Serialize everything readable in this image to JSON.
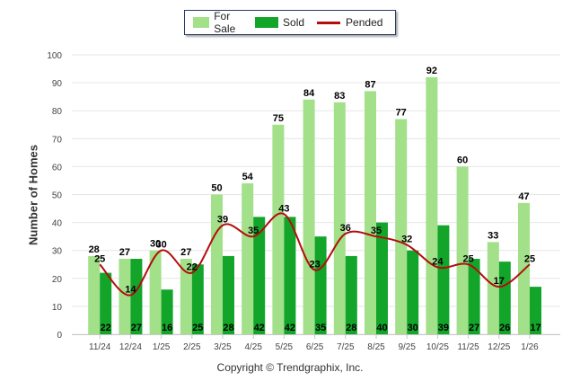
{
  "legend": {
    "for_sale": "For Sale",
    "sold": "Sold",
    "pended": "Pended"
  },
  "colors": {
    "for_sale": "#a3e08a",
    "sold": "#12a52a",
    "pended": "#b30d0d",
    "grid": "#e6e6e6",
    "axis_text": "#444444",
    "label_text": "#000000"
  },
  "footer": {
    "copyright": "Copyright © Trendgraphix, Inc."
  },
  "chart_data": {
    "type": "bar",
    "title": "",
    "xlabel": "",
    "ylabel": "Number of Homes",
    "ylim": [
      0,
      100
    ],
    "yticks": [
      0,
      10,
      20,
      30,
      40,
      50,
      60,
      70,
      80,
      90,
      100
    ],
    "grid": true,
    "legend_position": "top-center",
    "categories": [
      "11/24",
      "12/24",
      "1/25",
      "2/25",
      "3/25",
      "4/25",
      "5/25",
      "6/25",
      "7/25",
      "8/25",
      "9/25",
      "10/25",
      "11/25",
      "12/25",
      "1/26"
    ],
    "series": [
      {
        "name": "For Sale",
        "type": "bar",
        "values": [
          28,
          27,
          30,
          27,
          50,
          54,
          75,
          84,
          83,
          87,
          77,
          92,
          60,
          33,
          47
        ]
      },
      {
        "name": "Sold",
        "type": "bar",
        "values": [
          22,
          27,
          16,
          25,
          28,
          42,
          42,
          35,
          28,
          40,
          30,
          39,
          27,
          26,
          17
        ]
      },
      {
        "name": "Pended",
        "type": "line",
        "values": [
          25,
          14,
          30,
          22,
          39,
          35,
          43,
          23,
          36,
          35,
          32,
          24,
          25,
          17,
          25
        ]
      }
    ]
  }
}
